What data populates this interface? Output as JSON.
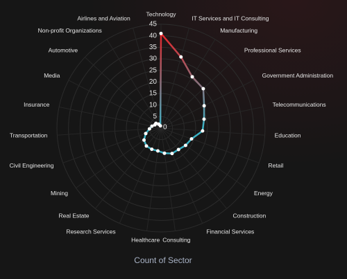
{
  "chart_data": {
    "type": "radar",
    "title": "Count of Sector",
    "categories": [
      "Technology",
      "IT Services and IT Consulting",
      "Manufacturing",
      "Professional Services",
      "Government Administration",
      "Telecommunications",
      "Education",
      "Retail",
      "Energy",
      "Construction",
      "Financial Services",
      "Consulting",
      "Healthcare",
      "Research Services",
      "Real Estate",
      "Mining",
      "Civil Engineering",
      "Transportation",
      "Insurance",
      "Media",
      "Automotive",
      "Non-profit Organizations",
      "Airlines and Aviation"
    ],
    "values": [
      41,
      32,
      26,
      25,
      21,
      19,
      18,
      14,
      13,
      12,
      12,
      11,
      10,
      10,
      10,
      9,
      7,
      5,
      4,
      3,
      3,
      2,
      1
    ],
    "ylim": [
      0,
      45
    ],
    "yticks": [
      0,
      5,
      10,
      15,
      20,
      25,
      30,
      35,
      40,
      45
    ],
    "colors": [
      "#e3262b",
      "#3ab3c6"
    ],
    "grid": true
  }
}
